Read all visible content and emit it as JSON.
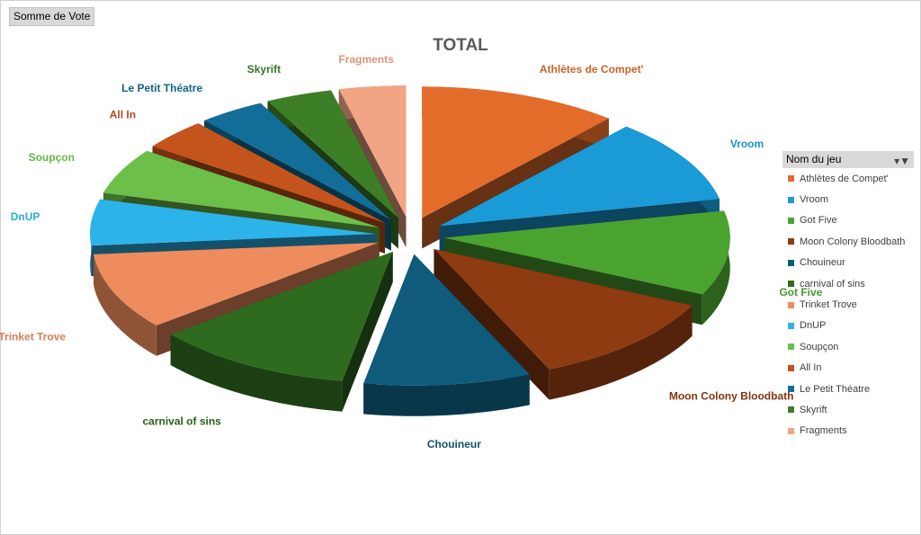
{
  "field_button": {
    "label": "Somme de Vote"
  },
  "legend": {
    "title": "Nom du jeu",
    "filter_icon": "filter-dropdown-icon"
  },
  "chart_data": {
    "type": "pie",
    "title": "TOTAL",
    "categories": [
      "Athlètes de Compet'",
      "Vroom",
      "Got Five",
      "Moon Colony Bloodbath",
      "Chouineur",
      "carnival of sins",
      "Trinket Trove",
      "DnUP",
      "Soupçon",
      "All In",
      "Le Petit Théatre",
      "Skyrift",
      "Fragments"
    ],
    "values": [
      12,
      11,
      11,
      12,
      10,
      12,
      10,
      6,
      6,
      4,
      4,
      4,
      4
    ],
    "colors": [
      "#e46c2a",
      "#1a9ad6",
      "#4ba32f",
      "#8e3b12",
      "#0f5b7c",
      "#2f6b1f",
      "#ee8c5e",
      "#2cb4ea",
      "#6cc04a",
      "#c4541c",
      "#126e98",
      "#3d7f27",
      "#f1a585"
    ],
    "legend_position": "right",
    "exploded": true,
    "view": "3d"
  }
}
